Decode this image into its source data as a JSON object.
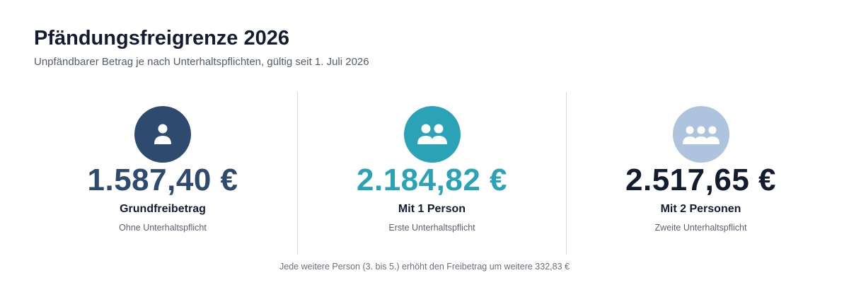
{
  "header": {
    "title": "Pfändungsfreigrenze 2026",
    "subtitle": "Unpfändbarer Betrag je nach Unterhaltspflichten, gültig seit 1. Juli 2026"
  },
  "cards": [
    {
      "amount": "1.587,40 €",
      "label": "Grundfreibetrag",
      "sublabel": "Ohne Unterhaltspflicht",
      "icon": "single-person-icon",
      "color": "#2e4a6e",
      "amount_color": "#2e4a6e"
    },
    {
      "amount": "2.184,82 €",
      "label": "Mit 1 Person",
      "sublabel": "Erste Unterhaltspflicht",
      "icon": "two-persons-icon",
      "color": "#2aa3b7",
      "amount_color": "#2aa3b7"
    },
    {
      "amount": "2.517,65 €",
      "label": "Mit 2 Personen",
      "sublabel": "Zweite Unterhaltspflicht",
      "icon": "three-persons-icon",
      "color": "#aec3de",
      "amount_color": "#141c2f"
    }
  ],
  "footnote": "Jede weitere Person (3. bis 5.) erhöht den Freibetrag um weitere 332,83 €"
}
